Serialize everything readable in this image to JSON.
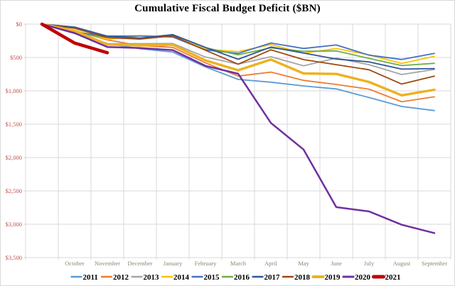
{
  "chart_data": {
    "type": "line",
    "title": "Cumulative Fiscal Budget Deficit ($BN)",
    "unit": "cumulative deficit, $BN (plotted increasing downward)",
    "x_categories": [
      "October",
      "November",
      "December",
      "January",
      "February",
      "March",
      "April",
      "May",
      "June",
      "July",
      "August",
      "September"
    ],
    "series_origin_note": "Every series starts from a common $0 point at fiscal-year start, one slot left of October",
    "y_axis": {
      "min": 0,
      "max": 3500,
      "tick_values": [
        0,
        500,
        1000,
        1500,
        2000,
        2500,
        3000,
        3500
      ],
      "tick_labels": [
        "$0",
        "$500",
        "$1,000",
        "$1,500",
        "$2,000",
        "$2,500",
        "$3,000",
        "$3,500"
      ]
    },
    "grid": true,
    "legend_position": "bottom",
    "colors": {
      "grid": "#d9d9d9",
      "border": "#d9d9d9",
      "background": "#ffffff",
      "title": "#000000",
      "y_labels": "#c0504d",
      "x_labels": "#8a8772",
      "legend_text": "#000000"
    },
    "series": [
      {
        "name": "2011",
        "color": "#5b9bd5",
        "width": 1.8,
        "values": [
          0,
          140,
          291,
          369,
          419,
          642,
          829,
          870,
          927,
          971,
          1100,
          1234,
          1296
        ]
      },
      {
        "name": "2012",
        "color": "#ed7d31",
        "width": 1.8,
        "values": [
          0,
          98,
          236,
          322,
          349,
          581,
          779,
          719,
          844,
          904,
          974,
          1164,
          1089
        ]
      },
      {
        "name": "2013",
        "color": "#a5a5a5",
        "width": 1.8,
        "values": [
          0,
          120,
          292,
          293,
          290,
          494,
          600,
          488,
          626,
          510,
          607,
          755,
          680
        ]
      },
      {
        "name": "2014",
        "color": "#ffc000",
        "width": 1.8,
        "values": [
          0,
          91,
          227,
          174,
          184,
          377,
          413,
          306,
          436,
          366,
          460,
          589,
          483
        ]
      },
      {
        "name": "2015",
        "color": "#4472c4",
        "width": 1.8,
        "values": [
          0,
          122,
          179,
          177,
          194,
          386,
          439,
          283,
          365,
          313,
          465,
          530,
          439
        ]
      },
      {
        "name": "2016",
        "color": "#70ad47",
        "width": 1.8,
        "values": [
          0,
          136,
          201,
          216,
          161,
          353,
          461,
          355,
          407,
          401,
          514,
          621,
          587
        ]
      },
      {
        "name": "2017",
        "color": "#2f5597",
        "width": 1.8,
        "values": [
          0,
          44,
          181,
          209,
          157,
          349,
          527,
          344,
          433,
          523,
          566,
          674,
          666
        ]
      },
      {
        "name": "2018",
        "color": "#9e480e",
        "width": 1.8,
        "values": [
          0,
          63,
          202,
          225,
          176,
          391,
          600,
          385,
          532,
          607,
          684,
          898,
          779
        ]
      },
      {
        "name": "2019",
        "color": "#edb120",
        "width": 3.4,
        "values": [
          0,
          100,
          305,
          319,
          310,
          544,
          691,
          531,
          739,
          747,
          867,
          1067,
          984
        ]
      },
      {
        "name": "2020",
        "color": "#7030a0",
        "width": 2.5,
        "values": [
          0,
          134,
          343,
          357,
          389,
          625,
          744,
          1481,
          1880,
          2744,
          2807,
          3007,
          3132
        ]
      },
      {
        "name": "2021",
        "color": "#c00000",
        "width": 4.5,
        "values": [
          0,
          284,
          429
        ]
      }
    ]
  }
}
